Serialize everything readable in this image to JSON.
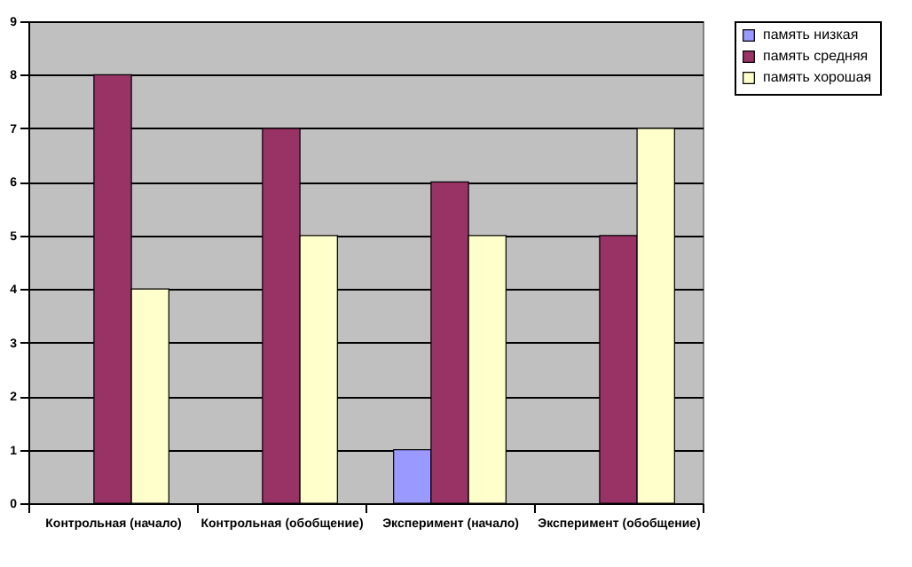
{
  "chart_data": {
    "type": "bar",
    "categories": [
      "Контрольная (начало)",
      "Контрольная (обобщение)",
      "Эксперимент (начало)",
      "Эксперимент (обобщение)"
    ],
    "series": [
      {
        "name": "память низкая",
        "color": "#9999ff",
        "values": [
          0,
          0,
          1,
          0
        ]
      },
      {
        "name": "память средняя",
        "color": "#993366",
        "values": [
          8,
          7,
          6,
          5
        ]
      },
      {
        "name": "память хорошая",
        "color": "#ffffcc",
        "values": [
          4,
          5,
          5,
          7
        ]
      }
    ],
    "ylim": [
      0,
      9
    ],
    "yticks": [
      0,
      1,
      2,
      3,
      4,
      5,
      6,
      7,
      8,
      9
    ],
    "grid": "y",
    "legend": "right"
  }
}
